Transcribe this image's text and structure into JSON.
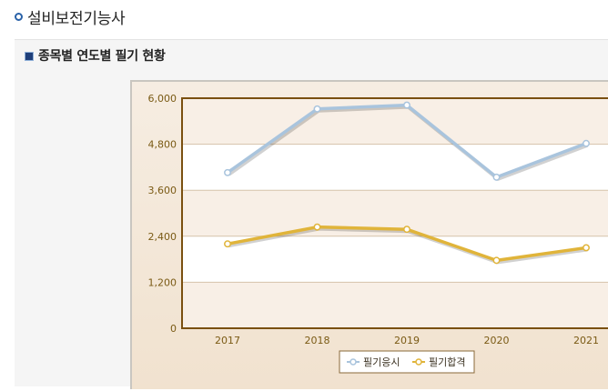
{
  "page": {
    "title": "설비보전기능사"
  },
  "section": {
    "title": "종목별 연도별 필기 현황"
  },
  "colors": {
    "series1": "#a9c4dd",
    "series2": "#e0b43a",
    "plot_border": "#7a5010",
    "band": "#f8efe6",
    "grid": "#d6c3aa"
  },
  "chart_data": {
    "type": "line",
    "title": "",
    "xlabel": "",
    "ylabel": "",
    "x": [
      "2017",
      "2018",
      "2019",
      "2020",
      "2021"
    ],
    "ylim": [
      0,
      6000
    ],
    "yticks": [
      "0",
      "1,200",
      "2,400",
      "3,600",
      "4,800",
      "6,000"
    ],
    "ytick_values": [
      0,
      1200,
      2400,
      3600,
      4800,
      6000
    ],
    "grid": true,
    "legend_position": "bottom",
    "series": [
      {
        "name": "필기응시",
        "values": [
          4060,
          5720,
          5820,
          3940,
          4820
        ]
      },
      {
        "name": "필기합격",
        "values": [
          2200,
          2640,
          2580,
          1770,
          2100
        ]
      }
    ]
  }
}
